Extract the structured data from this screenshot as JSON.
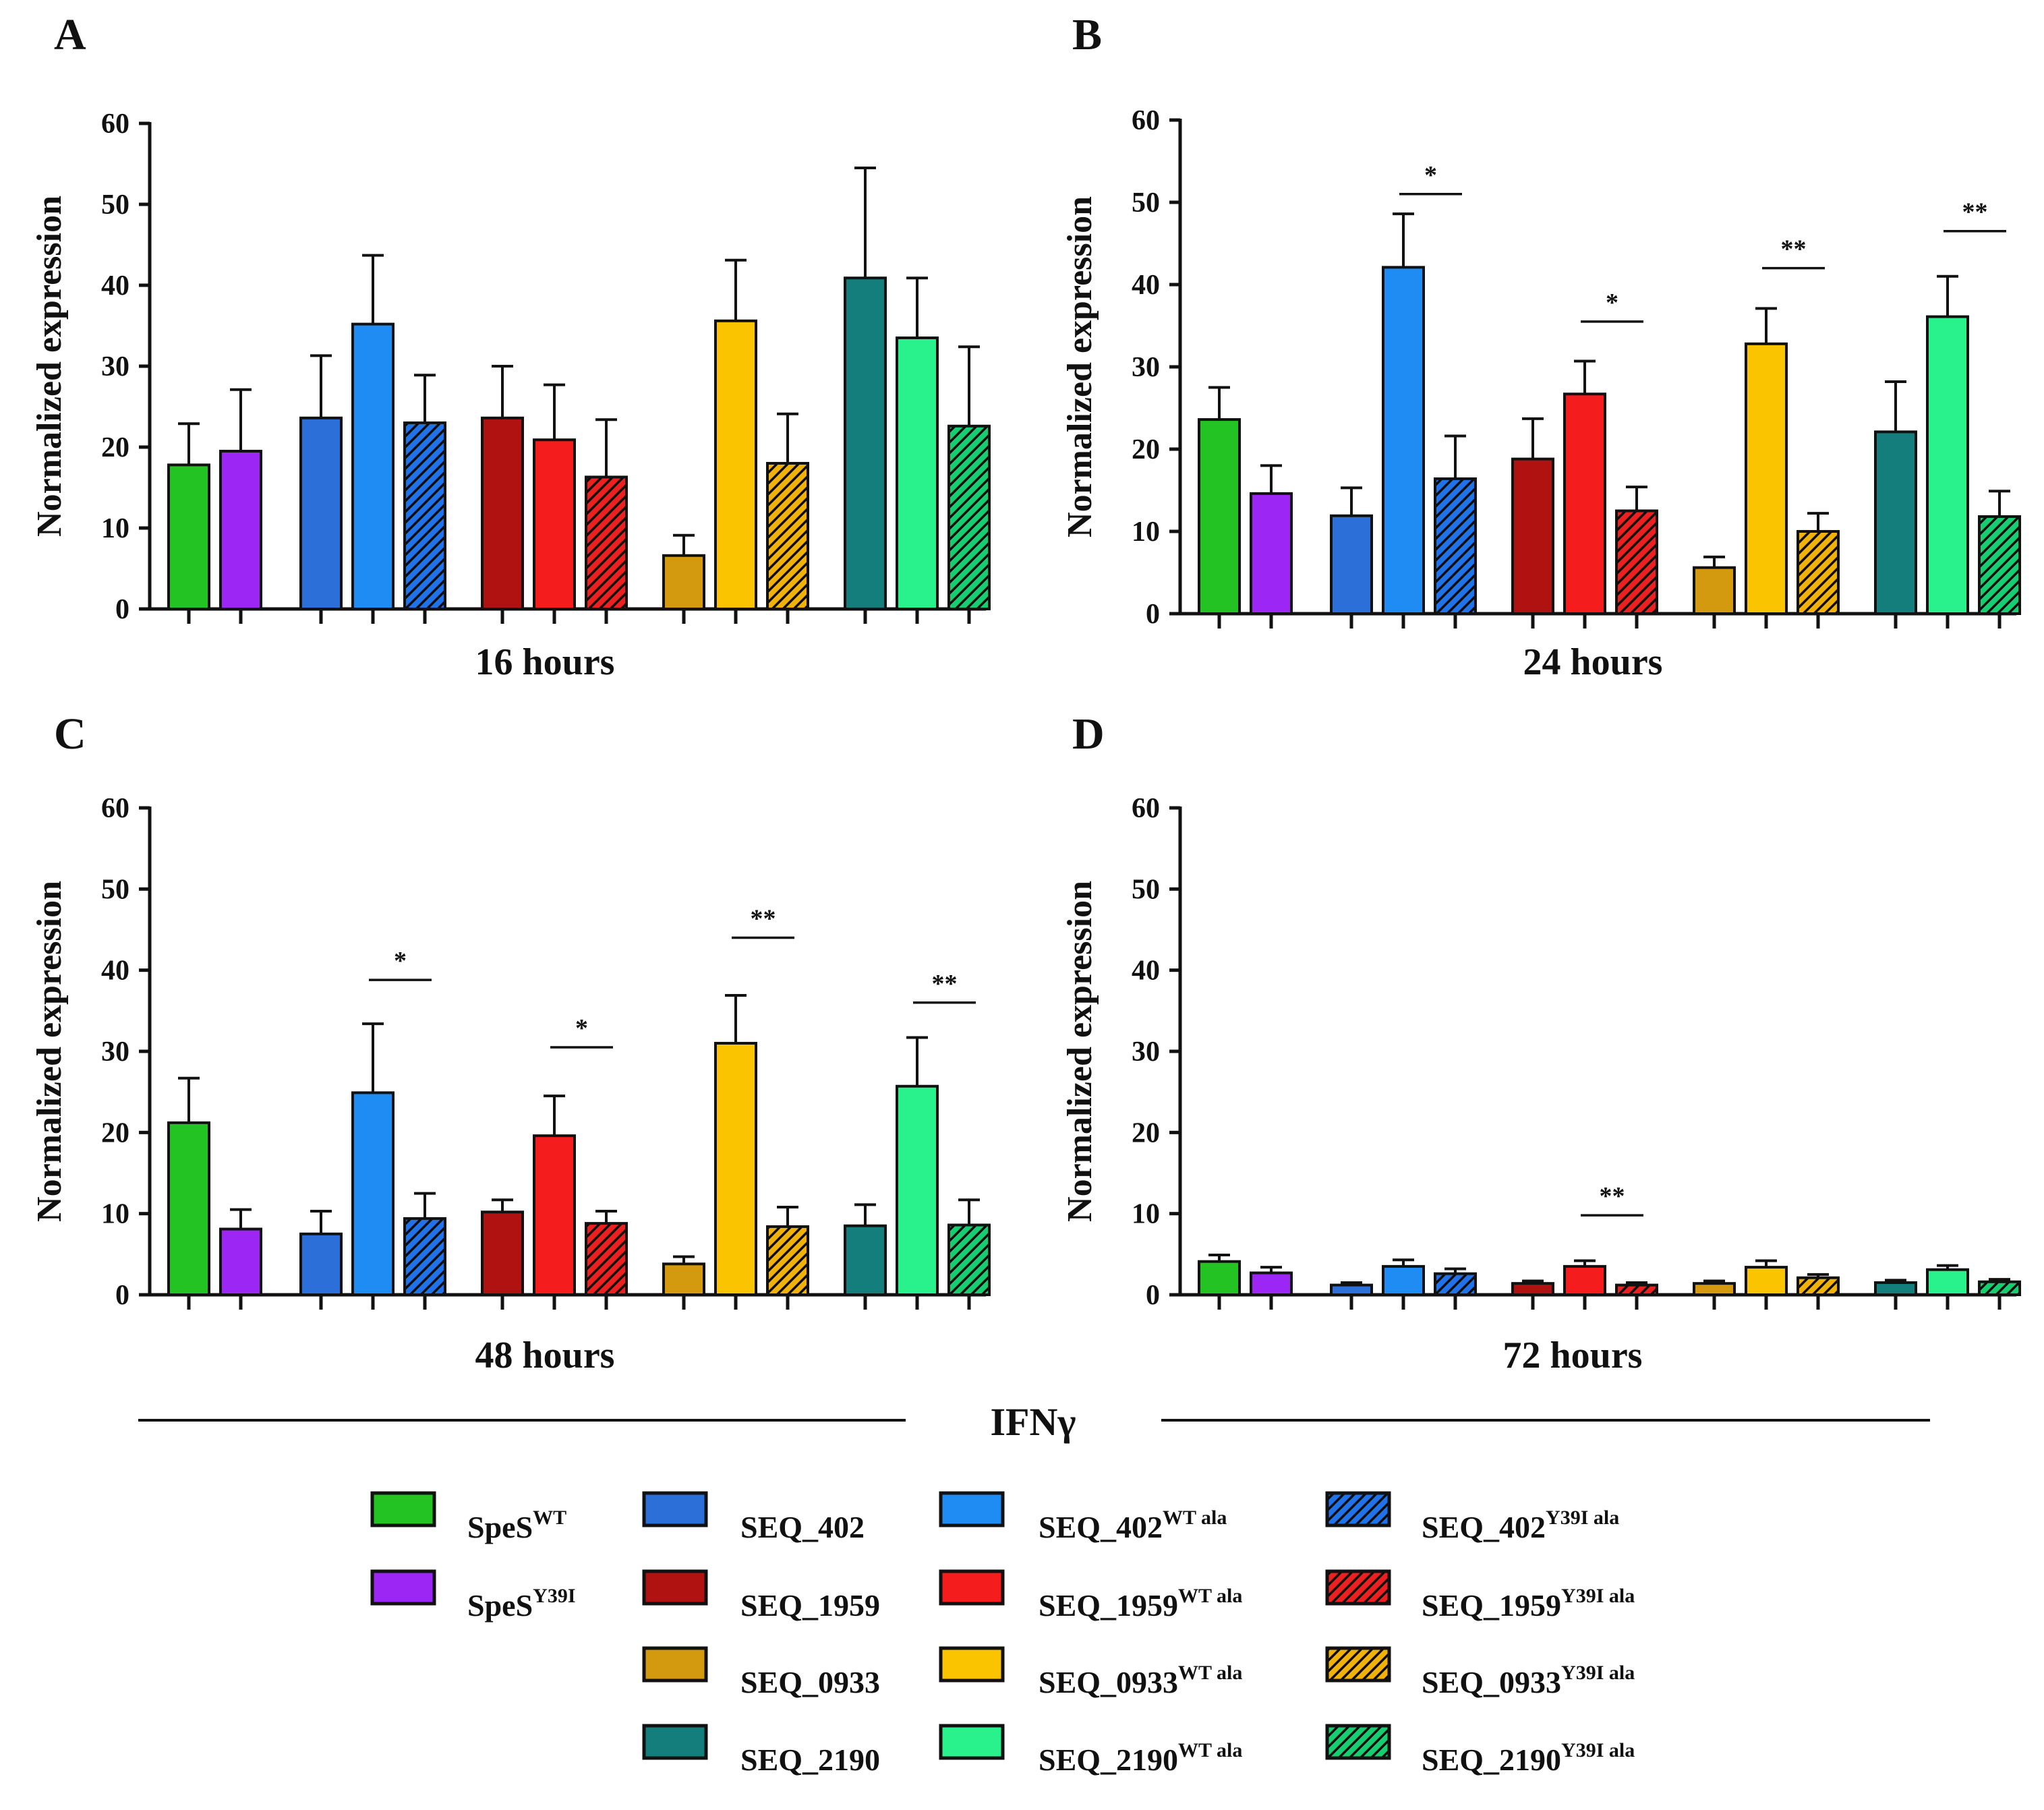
{
  "chart_data": {
    "type": "bar",
    "ylabel": "Normalized expression",
    "ylim": [
      0,
      60
    ],
    "yticks": [
      0,
      10,
      20,
      30,
      40,
      50,
      60
    ],
    "shared_xlabel": "IFNγ",
    "series": [
      {
        "key": "spes_wt",
        "base": "SpeS",
        "sup": "WT",
        "color": "#22c322",
        "pattern": "solid"
      },
      {
        "key": "spes_y39i",
        "base": "SpeS",
        "sup": "Y39I",
        "color": "#9c27f5",
        "pattern": "solid"
      },
      {
        "key": "seq402",
        "base": "SEQ_402",
        "sup": "",
        "color": "#2d6fd8",
        "pattern": "solid"
      },
      {
        "key": "seq402_wt",
        "base": "SEQ_402",
        "sup": "WT ala",
        "color": "#1f8cf4",
        "pattern": "solid"
      },
      {
        "key": "seq402_y39i",
        "base": "SEQ_402",
        "sup": "Y39I ala",
        "color": "#1f72e8",
        "pattern": "hatch"
      },
      {
        "key": "seq1959",
        "base": "SEQ_1959",
        "sup": "",
        "color": "#b01212",
        "pattern": "solid"
      },
      {
        "key": "seq1959_wt",
        "base": "SEQ_1959",
        "sup": "WT ala",
        "color": "#f41c1c",
        "pattern": "solid"
      },
      {
        "key": "seq1959_y39i",
        "base": "SEQ_1959",
        "sup": "Y39I ala",
        "color": "#ec2020",
        "pattern": "hatch"
      },
      {
        "key": "seq0933",
        "base": "SEQ_0933",
        "sup": "",
        "color": "#d39a10",
        "pattern": "solid"
      },
      {
        "key": "seq0933_wt",
        "base": "SEQ_0933",
        "sup": "WT ala",
        "color": "#fbc400",
        "pattern": "solid"
      },
      {
        "key": "seq0933_y39i",
        "base": "SEQ_0933",
        "sup": "Y39I ala",
        "color": "#f0b20a",
        "pattern": "hatch"
      },
      {
        "key": "seq2190",
        "base": "SEQ_2190",
        "sup": "",
        "color": "#137e7c",
        "pattern": "solid"
      },
      {
        "key": "seq2190_wt",
        "base": "SEQ_2190",
        "sup": "WT ala",
        "color": "#29f28c",
        "pattern": "solid"
      },
      {
        "key": "seq2190_y39i",
        "base": "SEQ_2190",
        "sup": "Y39I ala",
        "color": "#16cd6f",
        "pattern": "hatch"
      }
    ],
    "panels": [
      {
        "label": "A",
        "xlabel": "16 hours",
        "values": [
          17.8,
          19.5,
          23.6,
          35.2,
          23.0,
          23.6,
          20.9,
          16.3,
          6.6,
          35.6,
          18.0,
          40.9,
          33.5,
          22.6
        ],
        "errors": [
          5.1,
          7.6,
          7.7,
          8.5,
          5.9,
          6.4,
          6.8,
          7.1,
          2.5,
          7.5,
          6.1,
          13.6,
          7.4,
          9.8
        ],
        "significance": []
      },
      {
        "label": "B",
        "xlabel": "24 hours",
        "values": [
          23.6,
          14.6,
          11.9,
          42.1,
          16.4,
          18.8,
          26.7,
          12.5,
          5.6,
          32.8,
          10.0,
          22.1,
          36.1,
          11.8
        ],
        "errors": [
          3.9,
          3.4,
          3.4,
          6.5,
          5.2,
          4.9,
          4.0,
          2.9,
          1.3,
          4.3,
          2.2,
          6.1,
          4.9,
          3.1
        ],
        "significance": [
          {
            "from": 3,
            "to": 4,
            "label": "*",
            "y": 51.0
          },
          {
            "from": 6,
            "to": 7,
            "label": "*",
            "y": 35.5
          },
          {
            "from": 9,
            "to": 10,
            "label": "**",
            "y": 42.0
          },
          {
            "from": 12,
            "to": 13,
            "label": "**",
            "y": 46.5
          }
        ]
      },
      {
        "label": "C",
        "xlabel": "48 hours",
        "values": [
          21.2,
          8.1,
          7.5,
          24.9,
          9.4,
          10.2,
          19.6,
          8.8,
          3.8,
          31.0,
          8.4,
          8.5,
          25.7,
          8.6
        ],
        "errors": [
          5.5,
          2.4,
          2.8,
          8.5,
          3.1,
          1.5,
          4.9,
          1.5,
          0.9,
          5.9,
          2.4,
          2.6,
          6.0,
          3.1
        ],
        "significance": [
          {
            "from": 3,
            "to": 4,
            "label": "*",
            "y": 38.8
          },
          {
            "from": 6,
            "to": 7,
            "label": "*",
            "y": 30.5
          },
          {
            "from": 9,
            "to": 10,
            "label": "**",
            "y": 44.0
          },
          {
            "from": 12,
            "to": 13,
            "label": "**",
            "y": 36.0
          }
        ]
      },
      {
        "label": "D",
        "xlabel": "72 hours",
        "values": [
          4.1,
          2.7,
          1.2,
          3.5,
          2.6,
          1.4,
          3.5,
          1.2,
          1.4,
          3.4,
          2.1,
          1.5,
          3.1,
          1.6
        ],
        "errors": [
          0.8,
          0.7,
          0.3,
          0.8,
          0.6,
          0.3,
          0.7,
          0.3,
          0.3,
          0.8,
          0.4,
          0.3,
          0.5,
          0.3
        ],
        "significance": [
          {
            "from": 6,
            "to": 7,
            "label": "**",
            "y": 9.8
          }
        ]
      }
    ]
  }
}
